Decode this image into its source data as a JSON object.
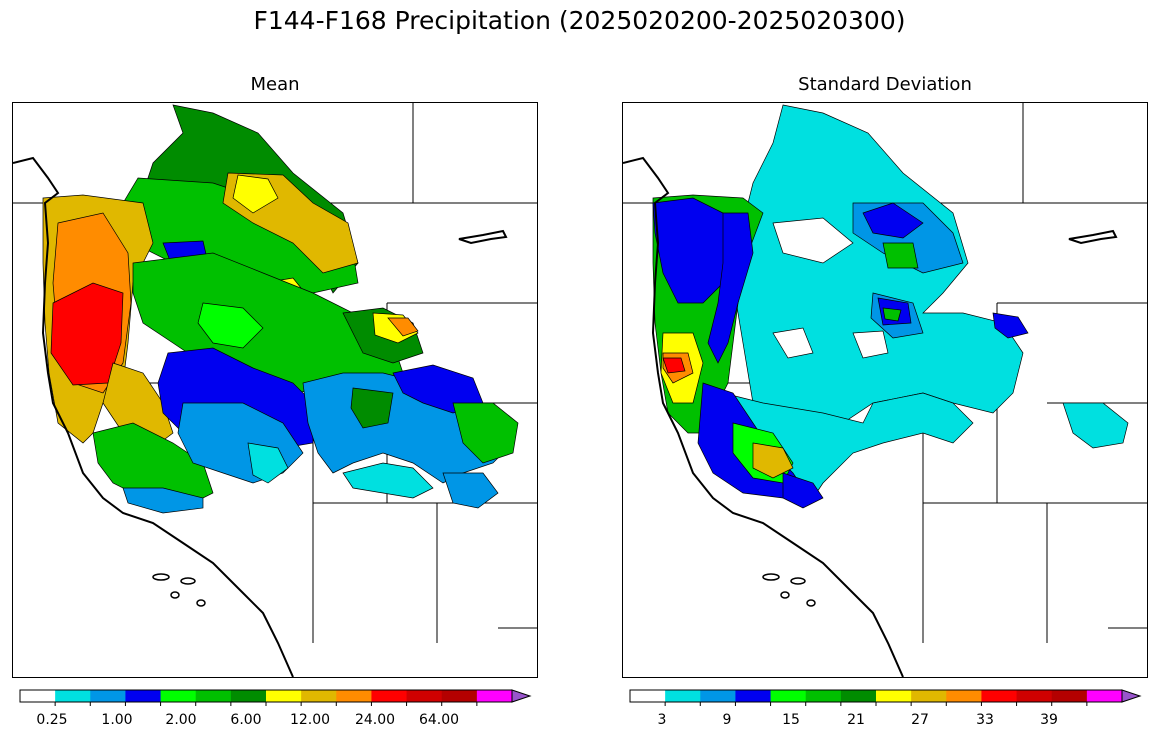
{
  "title": "F144-F168 Precipitation (2025020200-2025020300)",
  "panels": [
    {
      "title": "Mean",
      "colorbar": {
        "colors": [
          "#ffffff",
          "#00e0e0",
          "#0096e6",
          "#0000f0",
          "#00ff00",
          "#00c000",
          "#008c00",
          "#ffff00",
          "#e0b800",
          "#ff8c00",
          "#ff0000",
          "#d00000",
          "#b40000",
          "#ff00ff",
          "#9955cc"
        ],
        "tick_labels": [
          "0.25",
          "1.00",
          "2.00",
          "6.00",
          "12.00",
          "24.00",
          "64.00"
        ],
        "extend": "max"
      }
    },
    {
      "title": "Standard Deviation",
      "colorbar": {
        "colors": [
          "#ffffff",
          "#00e0e0",
          "#0096e6",
          "#0000f0",
          "#00ff00",
          "#00c000",
          "#008c00",
          "#ffff00",
          "#e0b800",
          "#ff8c00",
          "#ff0000",
          "#d00000",
          "#b40000",
          "#ff00ff",
          "#9955cc"
        ],
        "tick_labels": [
          "3",
          "9",
          "15",
          "21",
          "27",
          "33",
          "39"
        ],
        "extend": "max"
      }
    }
  ]
}
